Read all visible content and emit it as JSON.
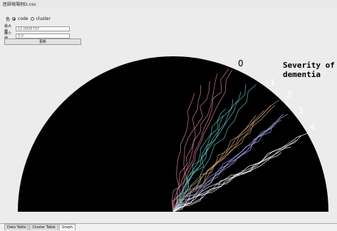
{
  "window": {
    "title": "医師現場例D.csv"
  },
  "mode": {
    "prefix": "色",
    "options": [
      "code",
      "cluster"
    ],
    "selected": "code"
  },
  "fields": [
    {
      "label": "最大値",
      "value": "12.0906797"
    },
    {
      "label": "最小値",
      "value": "0.0"
    }
  ],
  "update_label": "更新",
  "chart_data": {
    "type": "line",
    "subtype": "radial-trajectory",
    "annotation": "Severity of dementia",
    "severity_levels": [
      "0",
      "1",
      "2",
      "3",
      "4"
    ],
    "series_colors": [
      "#d580a0",
      "#60c0c0",
      "#d0a070",
      "#a0a0e0",
      "#ffffff"
    ]
  },
  "tabs": [
    {
      "label": "Data Table",
      "active": false
    },
    {
      "label": "Cluster Table",
      "active": false
    },
    {
      "label": "Graph",
      "active": true
    }
  ],
  "colors": {
    "background": "#000000",
    "panel": "#ececec"
  }
}
